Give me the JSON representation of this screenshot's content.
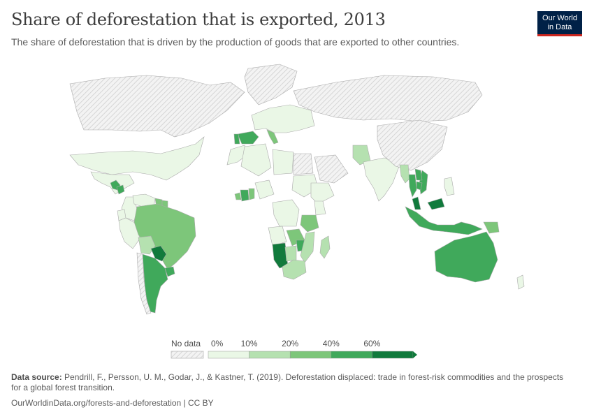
{
  "header": {
    "title": "Share of deforestation that is exported, 2013",
    "subtitle": "The share of deforestation that is driven by the production of goods that are exported to other countries.",
    "logo_line1": "Our World",
    "logo_line2": "in Data"
  },
  "colors": {
    "no_data": "#e8e8e8",
    "bin_0_10": "#eaf7e6",
    "bin_10_20": "#b5e1b0",
    "bin_20_40": "#7dc67a",
    "bin_40_60": "#40a95b",
    "bin_60_plus": "#117a3c",
    "border": "#aaaaaa"
  },
  "legend": {
    "no_data_label": "No data",
    "ticks": [
      "0%",
      "10%",
      "20%",
      "40%",
      "60%"
    ]
  },
  "chart_data": {
    "type": "choropleth",
    "bins": [
      {
        "range": [
          0,
          10
        ],
        "color": "#eaf7e6"
      },
      {
        "range": [
          10,
          20
        ],
        "color": "#b5e1b0"
      },
      {
        "range": [
          20,
          40
        ],
        "color": "#7dc67a"
      },
      {
        "range": [
          40,
          60
        ],
        "color": "#40a95b"
      },
      {
        "range": [
          60,
          100
        ],
        "color": "#117a3c"
      }
    ],
    "countries": [
      {
        "name": "Canada",
        "bin": "no_data"
      },
      {
        "name": "Greenland",
        "bin": "no_data"
      },
      {
        "name": "United States",
        "bin": "0-10"
      },
      {
        "name": "Mexico",
        "bin": "0-10"
      },
      {
        "name": "Guatemala",
        "bin": "40-60"
      },
      {
        "name": "Honduras",
        "bin": "40-60"
      },
      {
        "name": "Colombia",
        "bin": "0-10"
      },
      {
        "name": "Venezuela",
        "bin": "0-10"
      },
      {
        "name": "Guyana",
        "bin": "20-40"
      },
      {
        "name": "Suriname",
        "bin": "20-40"
      },
      {
        "name": "Ecuador",
        "bin": "0-10"
      },
      {
        "name": "Peru",
        "bin": "0-10"
      },
      {
        "name": "Brazil",
        "bin": "20-40"
      },
      {
        "name": "Bolivia",
        "bin": "10-20"
      },
      {
        "name": "Paraguay",
        "bin": "60+"
      },
      {
        "name": "Uruguay",
        "bin": "40-60"
      },
      {
        "name": "Argentina",
        "bin": "40-60"
      },
      {
        "name": "Chile",
        "bin": "no_data"
      },
      {
        "name": "Russia",
        "bin": "no_data"
      },
      {
        "name": "Spain",
        "bin": "40-60"
      },
      {
        "name": "Portugal",
        "bin": "40-60"
      },
      {
        "name": "Italy",
        "bin": "20-40"
      },
      {
        "name": "Europe (other)",
        "bin": "0-10"
      },
      {
        "name": "Morocco",
        "bin": "0-10"
      },
      {
        "name": "Algeria",
        "bin": "0-10"
      },
      {
        "name": "Libya",
        "bin": "0-10"
      },
      {
        "name": "Egypt",
        "bin": "no_data"
      },
      {
        "name": "Sudan",
        "bin": "0-10"
      },
      {
        "name": "Côte d'Ivoire",
        "bin": "40-60"
      },
      {
        "name": "Ghana",
        "bin": "20-40"
      },
      {
        "name": "Liberia",
        "bin": "20-40"
      },
      {
        "name": "Nigeria",
        "bin": "0-10"
      },
      {
        "name": "Ethiopia",
        "bin": "0-10"
      },
      {
        "name": "Kenya",
        "bin": "0-10"
      },
      {
        "name": "Tanzania",
        "bin": "20-40"
      },
      {
        "name": "DR Congo",
        "bin": "0-10"
      },
      {
        "name": "Angola",
        "bin": "0-10"
      },
      {
        "name": "Zambia",
        "bin": "20-40"
      },
      {
        "name": "Namibia",
        "bin": "60+"
      },
      {
        "name": "Botswana",
        "bin": "10-20"
      },
      {
        "name": "Zimbabwe",
        "bin": "40-60"
      },
      {
        "name": "Mozambique",
        "bin": "10-20"
      },
      {
        "name": "Madagascar",
        "bin": "10-20"
      },
      {
        "name": "South Africa",
        "bin": "10-20"
      },
      {
        "name": "Saudi Arabia",
        "bin": "no_data"
      },
      {
        "name": "Pakistan",
        "bin": "10-20"
      },
      {
        "name": "India",
        "bin": "0-10"
      },
      {
        "name": "China",
        "bin": "no_data"
      },
      {
        "name": "Myanmar",
        "bin": "10-20"
      },
      {
        "name": "Thailand",
        "bin": "40-60"
      },
      {
        "name": "Vietnam",
        "bin": "40-60"
      },
      {
        "name": "Laos",
        "bin": "40-60"
      },
      {
        "name": "Cambodia",
        "bin": "40-60"
      },
      {
        "name": "Philippines",
        "bin": "0-10"
      },
      {
        "name": "Malaysia",
        "bin": "60+"
      },
      {
        "name": "Indonesia",
        "bin": "40-60"
      },
      {
        "name": "Papua New Guinea",
        "bin": "20-40"
      },
      {
        "name": "Australia",
        "bin": "40-60"
      },
      {
        "name": "New Zealand",
        "bin": "0-10"
      }
    ]
  },
  "source": {
    "label": "Data source:",
    "text": "Pendrill, F., Persson, U. M., Godar, J., & Kastner, T. (2019). Deforestation displaced: trade in forest-risk commodities and the prospects for a global forest transition."
  },
  "footer": {
    "text": "OurWorldinData.org/forests-and-deforestation | CC BY"
  }
}
